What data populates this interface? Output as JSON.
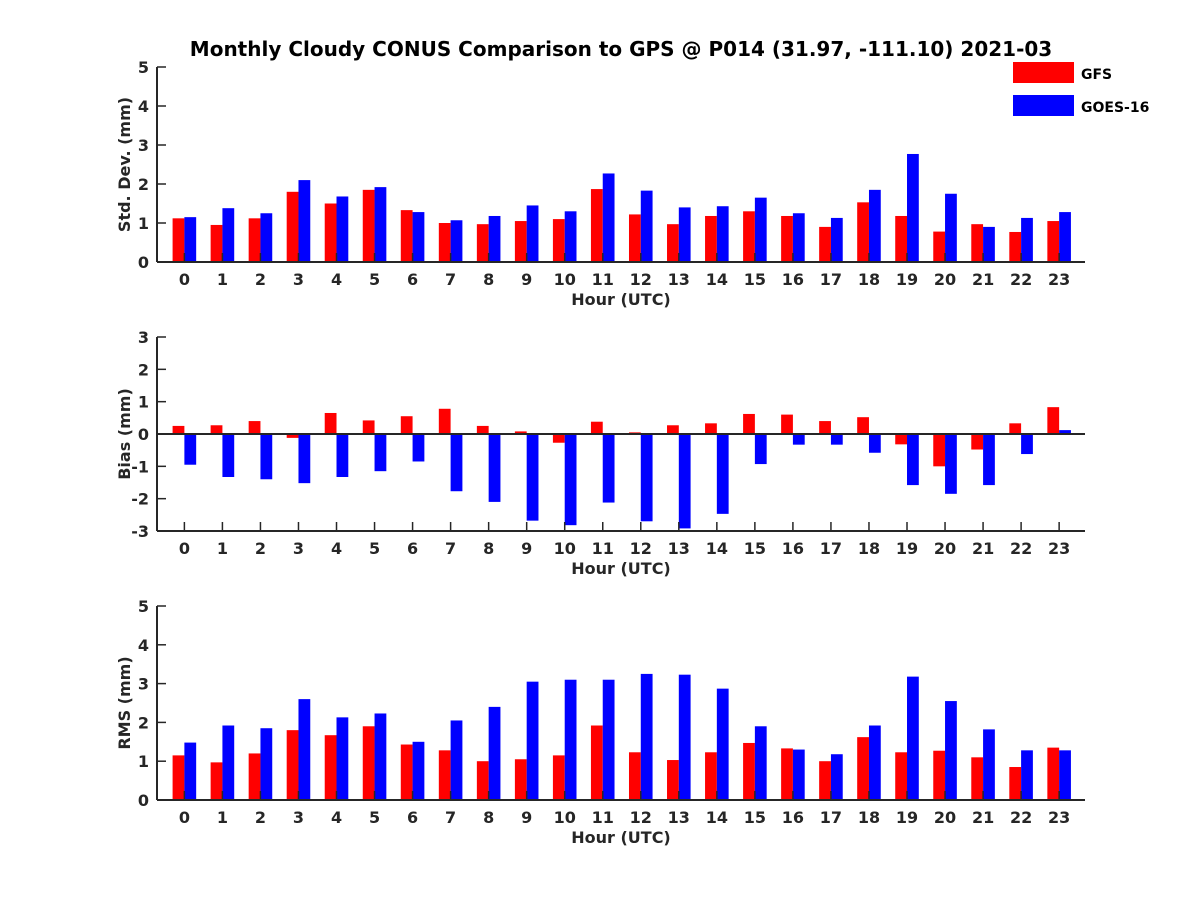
{
  "chart_data": {
    "title": "Monthly Cloudy CONUS Comparison to GPS @ P014 (31.97, -111.10) 2021-03",
    "legend": {
      "placement": "top-right",
      "entries": [
        {
          "name": "GFS",
          "color": "#ff0000"
        },
        {
          "name": "GOES-16",
          "color": "#0000ff"
        }
      ]
    },
    "panels": [
      {
        "type": "bar",
        "ylabel": "Std. Dev. (mm)",
        "xlabel": "Hour (UTC)",
        "ylim": [
          0,
          5
        ],
        "yticks": [
          0,
          1,
          2,
          3,
          4,
          5
        ],
        "categories": [
          "0",
          "1",
          "2",
          "3",
          "4",
          "5",
          "6",
          "7",
          "8",
          "9",
          "10",
          "11",
          "12",
          "13",
          "14",
          "15",
          "16",
          "17",
          "18",
          "19",
          "20",
          "21",
          "22",
          "23"
        ],
        "series": [
          {
            "name": "GFS",
            "color": "#ff0000",
            "values": [
              1.12,
              0.95,
              1.12,
              1.8,
              1.5,
              1.85,
              1.33,
              1.0,
              0.97,
              1.05,
              1.1,
              1.87,
              1.22,
              0.97,
              1.18,
              1.3,
              1.18,
              0.9,
              1.53,
              1.18,
              0.78,
              0.97,
              0.77,
              1.05
            ]
          },
          {
            "name": "GOES-16",
            "color": "#0000ff",
            "values": [
              1.15,
              1.38,
              1.25,
              2.1,
              1.68,
              1.92,
              1.28,
              1.07,
              1.18,
              1.45,
              1.3,
              2.27,
              1.83,
              1.4,
              1.43,
              1.65,
              1.25,
              1.13,
              1.85,
              2.77,
              1.75,
              0.9,
              1.13,
              1.28
            ]
          }
        ]
      },
      {
        "type": "bar",
        "ylabel": "Bias (mm)",
        "xlabel": "Hour (UTC)",
        "ylim": [
          -3,
          3
        ],
        "yticks": [
          -3,
          -2,
          -1,
          0,
          1,
          2,
          3
        ],
        "categories": [
          "0",
          "1",
          "2",
          "3",
          "4",
          "5",
          "6",
          "7",
          "8",
          "9",
          "10",
          "11",
          "12",
          "13",
          "14",
          "15",
          "16",
          "17",
          "18",
          "19",
          "20",
          "21",
          "22",
          "23"
        ],
        "series": [
          {
            "name": "GFS",
            "color": "#ff0000",
            "values": [
              0.25,
              0.27,
              0.4,
              -0.12,
              0.65,
              0.42,
              0.55,
              0.78,
              0.25,
              0.08,
              -0.27,
              0.38,
              0.05,
              0.27,
              0.33,
              0.62,
              0.6,
              0.4,
              0.52,
              -0.32,
              -1.0,
              -0.48,
              0.33,
              0.83
            ]
          },
          {
            "name": "GOES-16",
            "color": "#0000ff",
            "values": [
              -0.95,
              -1.33,
              -1.4,
              -1.52,
              -1.33,
              -1.15,
              -0.85,
              -1.77,
              -2.1,
              -2.68,
              -2.82,
              -2.12,
              -2.7,
              -2.92,
              -2.47,
              -0.93,
              -0.33,
              -0.33,
              -0.58,
              -1.58,
              -1.85,
              -1.58,
              -0.62,
              0.12
            ]
          }
        ]
      },
      {
        "type": "bar",
        "ylabel": "RMS (mm)",
        "xlabel": "Hour (UTC)",
        "ylim": [
          0,
          5
        ],
        "yticks": [
          0,
          1,
          2,
          3,
          4,
          5
        ],
        "categories": [
          "0",
          "1",
          "2",
          "3",
          "4",
          "5",
          "6",
          "7",
          "8",
          "9",
          "10",
          "11",
          "12",
          "13",
          "14",
          "15",
          "16",
          "17",
          "18",
          "19",
          "20",
          "21",
          "22",
          "23"
        ],
        "series": [
          {
            "name": "GFS",
            "color": "#ff0000",
            "values": [
              1.15,
              0.97,
              1.2,
              1.8,
              1.67,
              1.9,
              1.43,
              1.28,
              1.0,
              1.05,
              1.15,
              1.92,
              1.23,
              1.03,
              1.23,
              1.47,
              1.33,
              1.0,
              1.62,
              1.23,
              1.27,
              1.1,
              0.85,
              1.35
            ]
          },
          {
            "name": "GOES-16",
            "color": "#0000ff",
            "values": [
              1.48,
              1.92,
              1.85,
              2.6,
              2.13,
              2.23,
              1.5,
              2.05,
              2.4,
              3.05,
              3.1,
              3.1,
              3.25,
              3.23,
              2.87,
              1.9,
              1.3,
              1.18,
              1.92,
              3.18,
              2.55,
              1.82,
              1.28,
              1.28
            ]
          }
        ]
      }
    ]
  }
}
